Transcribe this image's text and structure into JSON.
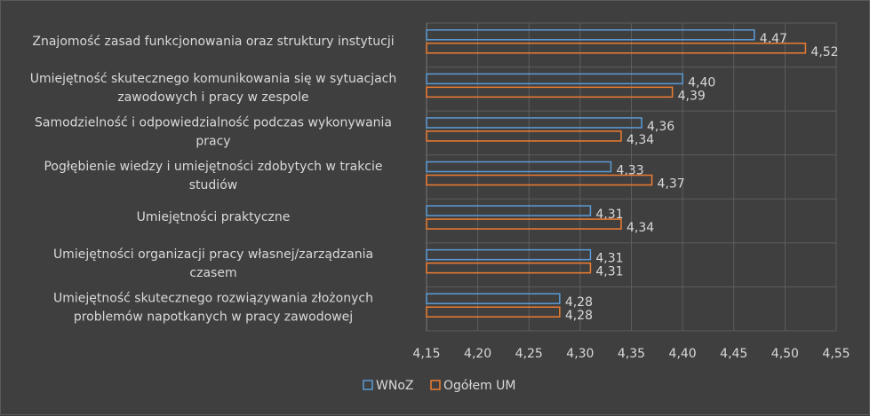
{
  "chart_data": {
    "type": "bar",
    "orientation": "horizontal",
    "categories": [
      [
        "Znajomość zasad funkcjonowania oraz struktury instytucji"
      ],
      [
        "Umiejętność skutecznego komunikowania się w sytuacjach",
        "zawodowych i pracy w zespole"
      ],
      [
        "Samodzielność i odpowiedzialność podczas wykonywania",
        "pracy"
      ],
      [
        "Pogłębienie wiedzy i umiejętności zdobytych w trakcie",
        "studiów"
      ],
      [
        "Umiejętności praktyczne"
      ],
      [
        "Umiejętności organizacji pracy własnej/zarządzania",
        "czasem"
      ],
      [
        "Umiejętność skutecznego rozwiązywania złożonych",
        "problemów napotkanych w pracy zawodowej"
      ]
    ],
    "series": [
      {
        "name": "WNoZ",
        "color": "#5b9bd5",
        "values": [
          4.47,
          4.4,
          4.36,
          4.33,
          4.31,
          4.31,
          4.28
        ],
        "labels": [
          "4,47",
          "4,40",
          "4,36",
          "4,33",
          "4,31",
          "4,31",
          "4,28"
        ]
      },
      {
        "name": "Ogółem UM",
        "color": "#ed7d31",
        "values": [
          4.52,
          4.39,
          4.34,
          4.37,
          4.34,
          4.31,
          4.28
        ],
        "labels": [
          "4,52",
          "4,39",
          "4,34",
          "4,37",
          "4,34",
          "4,31",
          "4,28"
        ]
      }
    ],
    "xlim": [
      4.15,
      4.55
    ],
    "xticks": [
      4.15,
      4.2,
      4.25,
      4.3,
      4.35,
      4.4,
      4.45,
      4.5,
      4.55
    ],
    "xtick_labels": [
      "4,15",
      "4,20",
      "4,25",
      "4,30",
      "4,35",
      "4,40",
      "4,45",
      "4,50",
      "4,55"
    ],
    "grid": true,
    "legend_position": "bottom"
  }
}
